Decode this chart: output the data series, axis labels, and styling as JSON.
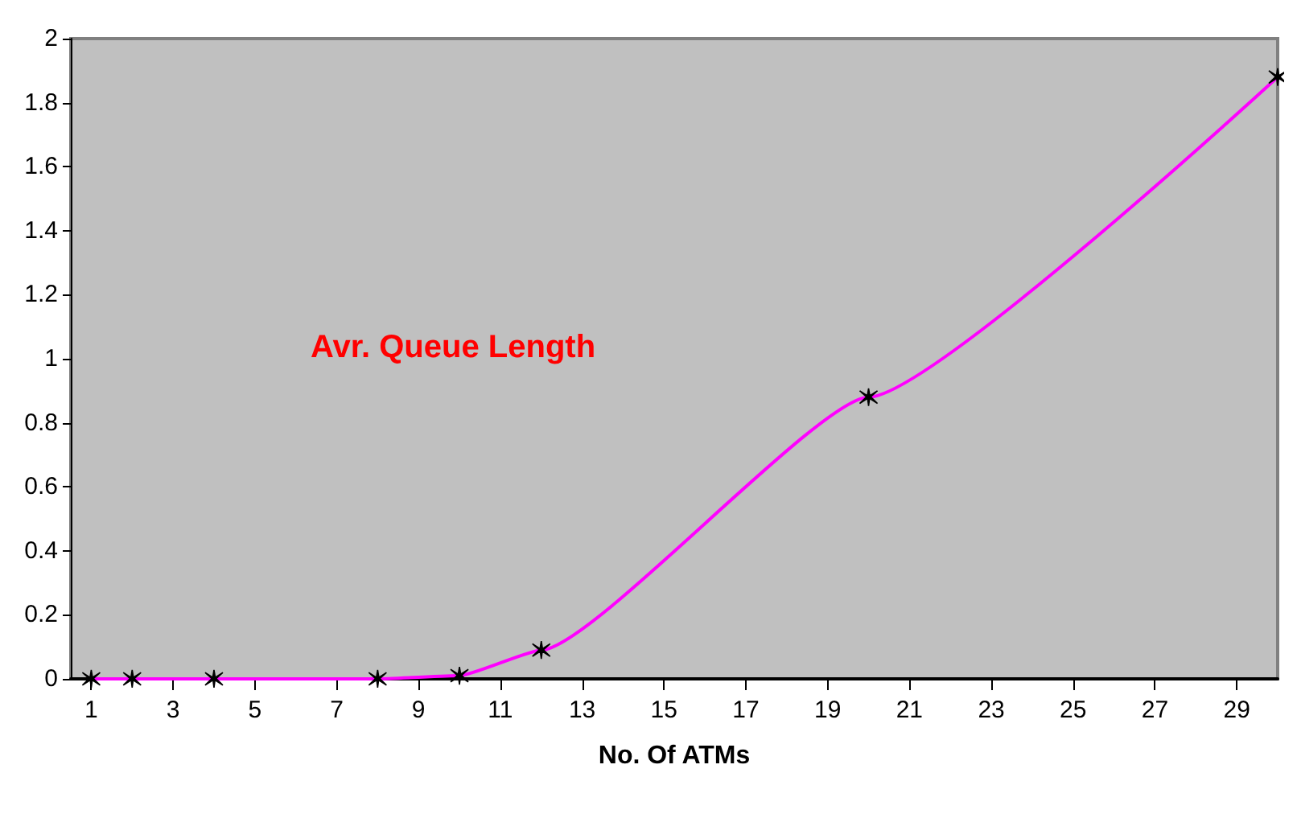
{
  "chart_data": {
    "type": "line",
    "title": "Avr. Queue Length",
    "xlabel": "No. Of ATMs",
    "x": [
      1,
      2,
      4,
      8,
      10,
      12,
      20,
      30
    ],
    "series": [
      {
        "color": "#ff00ff",
        "values": [
          0,
          0,
          0,
          0,
          0.01,
          0.09,
          0.88,
          1.88
        ]
      }
    ],
    "xlim": [
      0.5,
      30
    ],
    "xticks": [
      1,
      3,
      5,
      7,
      9,
      11,
      13,
      15,
      17,
      19,
      21,
      23,
      25,
      27,
      29
    ],
    "ylim": [
      0,
      2
    ],
    "yticks": [
      0,
      0.2,
      0.4,
      0.6,
      0.8,
      1,
      1.2,
      1.4,
      1.6,
      1.8,
      2
    ],
    "grid": false,
    "marker": "cross",
    "line_style": "solid"
  }
}
